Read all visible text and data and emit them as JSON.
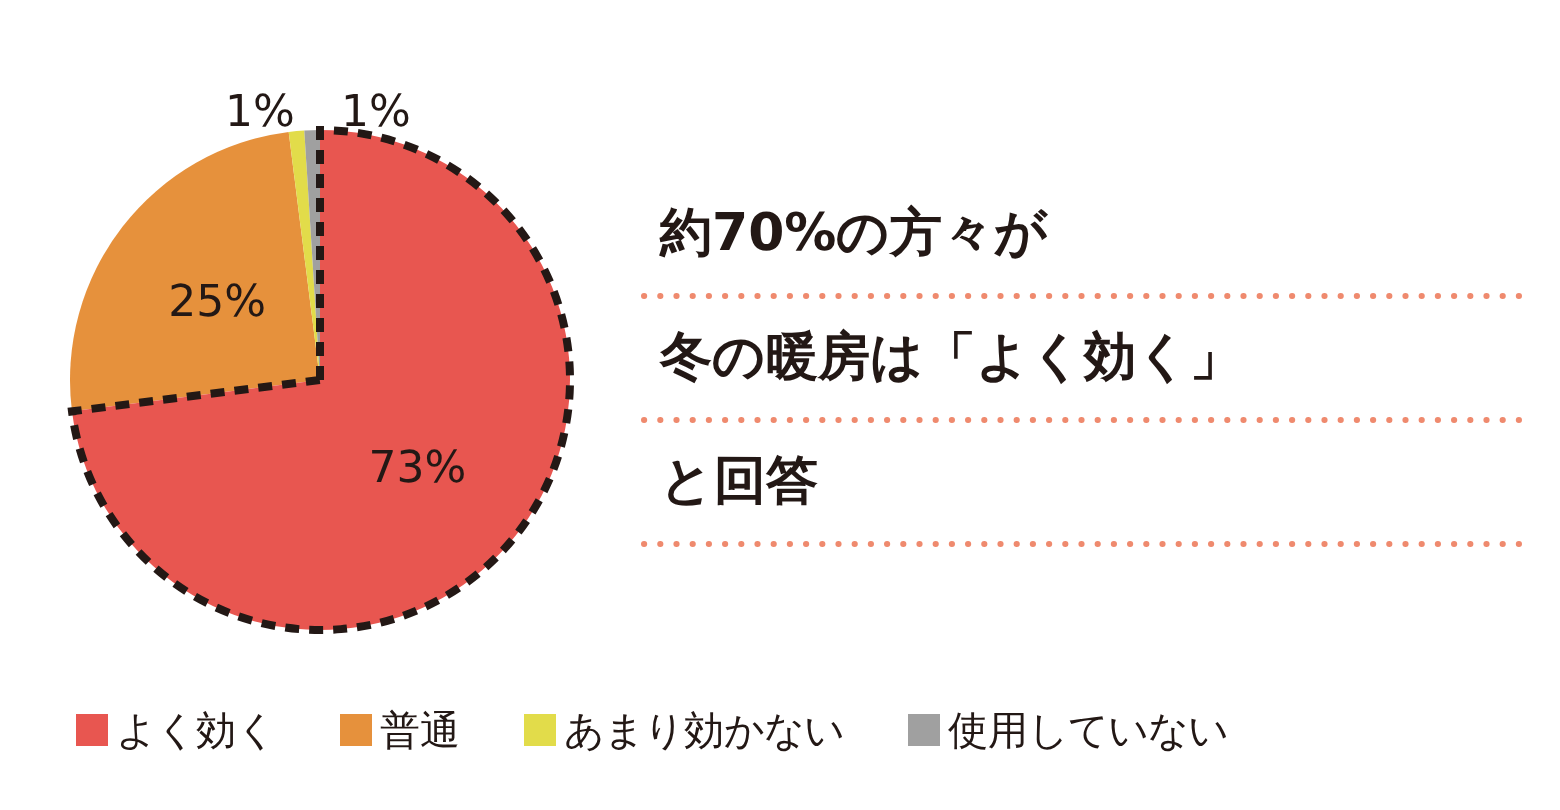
{
  "chart_data": {
    "type": "pie",
    "categories": [
      "よく効く",
      "普通",
      "あまり効かない",
      "使用していない"
    ],
    "values": [
      73,
      25,
      1,
      1
    ],
    "colors": [
      "#e85650",
      "#e6913c",
      "#e2dc4a",
      "#a0a0a0"
    ],
    "value_labels": [
      "73%",
      "25%",
      "1%",
      "1%"
    ],
    "legend": "bottom",
    "annotations": [
      "約70%の方々が",
      "冬の暖房は「よく効く」",
      "と回答"
    ]
  }
}
